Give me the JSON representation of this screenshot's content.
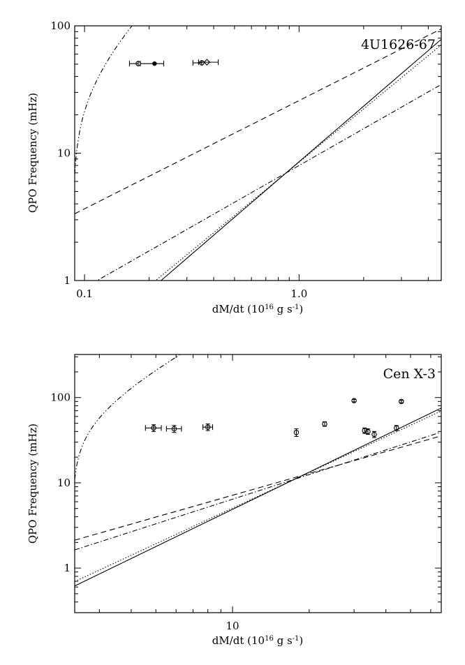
{
  "chart_data": [
    {
      "type": "scatter",
      "title": "4U1626-67",
      "xlabel": "dM/dt (10",
      "xlabel_exp": "16",
      "xlabel_unit": " g s",
      "xlabel_unit_exp": "-1",
      "xlabel_close": ")",
      "ylabel": "QPO Frequency (mHz)",
      "xscale": "log",
      "yscale": "log",
      "xlim": [
        0.09,
        4.6
      ],
      "ylim": [
        1,
        100
      ],
      "xticks": [
        0.1,
        1.0
      ],
      "xtick_labels": [
        "0.1",
        "1.0"
      ],
      "yticks": [
        1,
        10,
        100
      ],
      "ytick_labels": [
        "1",
        "10",
        "100"
      ],
      "legend": "none",
      "points": [
        {
          "x": 0.178,
          "y": 50.5,
          "xerr": [
            0.016,
            0.0
          ],
          "marker": "open-circle"
        },
        {
          "x": 0.212,
          "y": 50.5,
          "xerr": [
            0.03,
            0.022
          ],
          "marker": "filled-circle"
        },
        {
          "x": 0.352,
          "y": 51.2,
          "xerr": [
            0.032,
            0.0
          ],
          "marker": "open-circle"
        },
        {
          "x": 0.372,
          "y": 51.8,
          "xerr": [
            0.032,
            0.048
          ],
          "marker": "open-diamond"
        }
      ],
      "curves": [
        {
          "style": "dash-dot-dot",
          "exp": 0,
          "c": 6.8,
          "sat": 0.09
        },
        {
          "style": "dashed",
          "power": 0.85,
          "c": 23.0
        },
        {
          "style": "dash-dot",
          "power": 0.96,
          "c": 7.0
        },
        {
          "style": "solid",
          "power": 1.45,
          "c": 7.0
        },
        {
          "style": "dotted",
          "power": 1.39,
          "c": 7.0
        }
      ]
    },
    {
      "type": "scatter",
      "title": "Cen X-3",
      "xlabel": "dM/dt (10",
      "xlabel_exp": "16",
      "xlabel_unit": " g s",
      "xlabel_unit_exp": "-1",
      "xlabel_close": ")",
      "ylabel": "QPO Frequency (mHz)",
      "xscale": "log",
      "yscale": "log",
      "xlim": [
        2.4,
        66
      ],
      "ylim": [
        0.3,
        320
      ],
      "xticks": [
        10
      ],
      "xtick_labels": [
        "10"
      ],
      "yticks": [
        1,
        10,
        100
      ],
      "ytick_labels": [
        "1",
        "10",
        "100"
      ],
      "legend": "none",
      "points": [
        {
          "x": 4.9,
          "y": 44,
          "xerr": [
            0.35,
            0.35
          ],
          "yerr": 4
        },
        {
          "x": 5.9,
          "y": 43,
          "xerr": [
            0.4,
            0.4
          ],
          "yerr": 4
        },
        {
          "x": 8.0,
          "y": 45,
          "xerr": [
            0.35,
            0.35
          ],
          "yerr": 4
        },
        {
          "x": 17.8,
          "y": 39,
          "xerr": [
            0.0,
            0.0
          ],
          "yerr": 4
        },
        {
          "x": 23.0,
          "y": 49,
          "xerr": [
            0.0,
            0.0
          ],
          "yerr": 3
        },
        {
          "x": 30.0,
          "y": 92,
          "xerr": [
            0.0,
            0.0
          ],
          "yerr": 3
        },
        {
          "x": 33.0,
          "y": 41,
          "xerr": [
            0.0,
            0.0
          ],
          "yerr": 3
        },
        {
          "x": 34.0,
          "y": 40,
          "xerr": [
            0.0,
            0.0
          ],
          "yerr": 3
        },
        {
          "x": 36.0,
          "y": 37,
          "xerr": [
            0.0,
            0.0
          ],
          "yerr": 3
        },
        {
          "x": 44.0,
          "y": 44,
          "xerr": [
            0.0,
            0.0
          ],
          "yerr": 3
        },
        {
          "x": 46.0,
          "y": 90,
          "xerr": [
            0.0,
            0.0
          ],
          "yerr": 3
        }
      ],
      "curves": [
        {
          "style": "dash-dot-dot",
          "exp": 0,
          "c": 11,
          "sat": 2.4
        },
        {
          "style": "dashed",
          "power": 0.85,
          "c": 11.5
        },
        {
          "style": "dash-dot",
          "power": 0.96,
          "c": 11.0
        },
        {
          "style": "solid",
          "power": 1.45,
          "c": 11.0
        },
        {
          "style": "dotted",
          "power": 1.39,
          "c": 11.0
        }
      ]
    }
  ]
}
